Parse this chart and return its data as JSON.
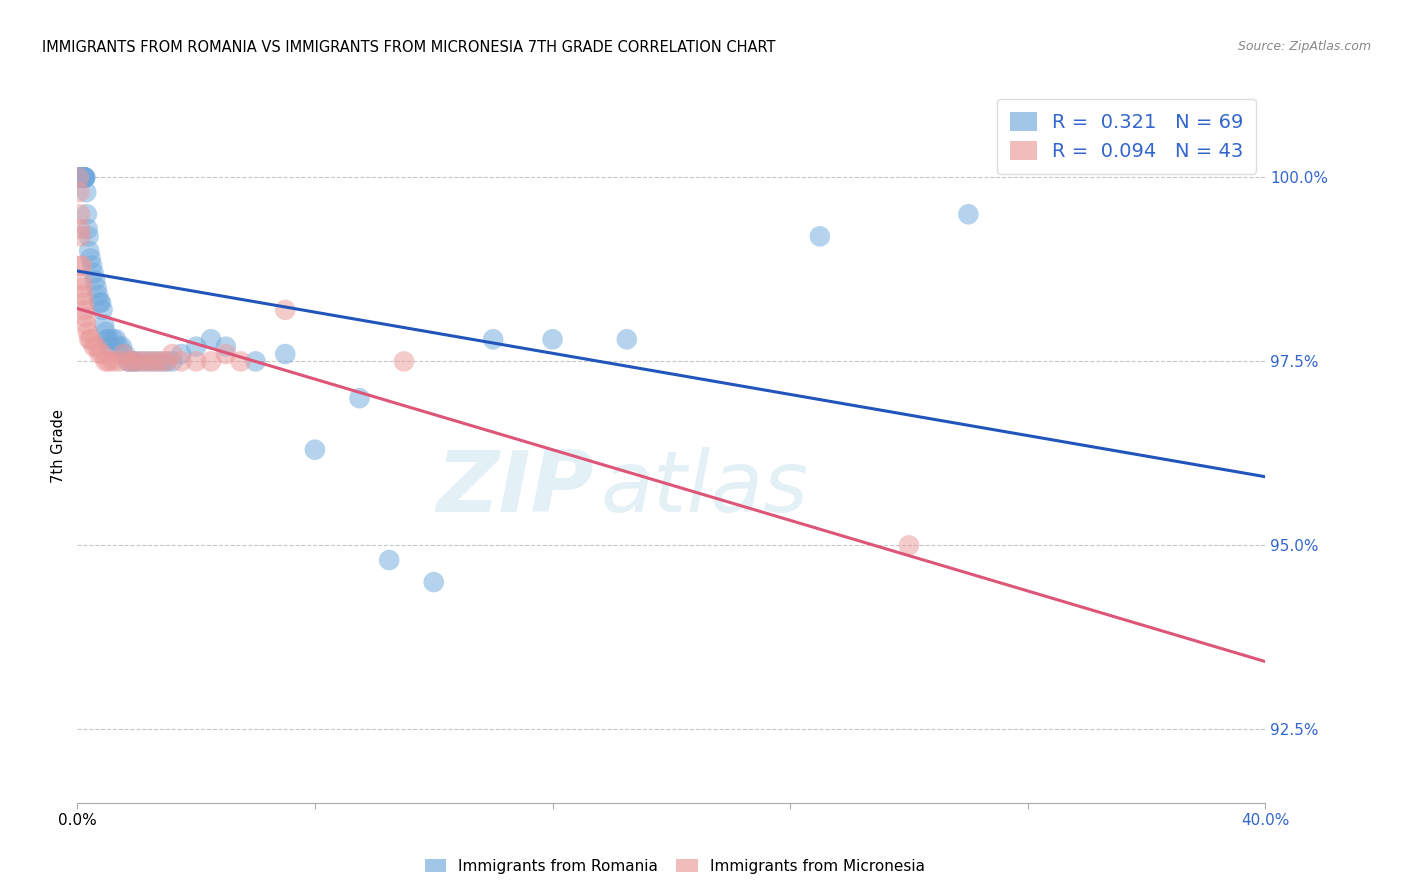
{
  "title": "IMMIGRANTS FROM ROMANIA VS IMMIGRANTS FROM MICRONESIA 7TH GRADE CORRELATION CHART",
  "source": "Source: ZipAtlas.com",
  "ylabel": "7th Grade",
  "xlim": [
    0.0,
    40.0
  ],
  "ylim": [
    91.5,
    101.2
  ],
  "yticks": [
    92.5,
    95.0,
    97.5,
    100.0
  ],
  "ytick_labels": [
    "92.5%",
    "95.0%",
    "97.5%",
    "100.0%"
  ],
  "xtick_positions": [
    0.0,
    8.0,
    16.0,
    24.0,
    32.0,
    40.0
  ],
  "romania_color": "#6fa8dc",
  "micronesia_color": "#ea9999",
  "line_blue": "#2255bb",
  "line_pink": "#dd5577",
  "legend_R_romania": "0.321",
  "legend_N_romania": "69",
  "legend_R_micronesia": "0.094",
  "legend_N_micronesia": "43",
  "romania_x": [
    0.05,
    0.08,
    0.1,
    0.11,
    0.12,
    0.13,
    0.14,
    0.15,
    0.16,
    0.17,
    0.18,
    0.19,
    0.2,
    0.21,
    0.22,
    0.23,
    0.24,
    0.25,
    0.26,
    0.27,
    0.3,
    0.32,
    0.35,
    0.38,
    0.4,
    0.45,
    0.5,
    0.55,
    0.6,
    0.65,
    0.7,
    0.75,
    0.8,
    0.85,
    0.9,
    0.95,
    1.0,
    1.05,
    1.1,
    1.2,
    1.3,
    1.4,
    1.5,
    1.6,
    1.7,
    1.8,
    1.9,
    2.0,
    2.2,
    2.4,
    2.6,
    2.8,
    3.0,
    3.2,
    3.5,
    4.0,
    4.5,
    5.0,
    6.0,
    7.0,
    8.0,
    9.5,
    10.5,
    12.0,
    14.0,
    16.0,
    18.5,
    25.0,
    30.0
  ],
  "romania_y": [
    100.0,
    100.0,
    100.0,
    100.0,
    100.0,
    100.0,
    100.0,
    100.0,
    100.0,
    100.0,
    100.0,
    100.0,
    100.0,
    100.0,
    100.0,
    100.0,
    100.0,
    100.0,
    100.0,
    100.0,
    99.8,
    99.5,
    99.3,
    99.2,
    99.0,
    98.9,
    98.8,
    98.7,
    98.6,
    98.5,
    98.4,
    98.3,
    98.3,
    98.2,
    98.0,
    97.9,
    97.8,
    97.8,
    97.7,
    97.8,
    97.8,
    97.7,
    97.7,
    97.6,
    97.5,
    97.5,
    97.5,
    97.5,
    97.5,
    97.5,
    97.5,
    97.5,
    97.5,
    97.5,
    97.6,
    97.7,
    97.8,
    97.7,
    97.5,
    97.6,
    96.3,
    97.0,
    94.8,
    94.5,
    97.8,
    97.8,
    97.8,
    99.2,
    99.5
  ],
  "micronesia_x": [
    0.05,
    0.07,
    0.09,
    0.1,
    0.11,
    0.12,
    0.14,
    0.16,
    0.18,
    0.2,
    0.22,
    0.25,
    0.28,
    0.3,
    0.35,
    0.4,
    0.45,
    0.55,
    0.65,
    0.75,
    0.85,
    0.95,
    1.05,
    1.2,
    1.4,
    1.55,
    1.7,
    1.85,
    2.0,
    2.2,
    2.4,
    2.6,
    2.8,
    3.0,
    3.2,
    3.5,
    4.0,
    4.5,
    5.0,
    5.5,
    7.0,
    11.0,
    28.0
  ],
  "micronesia_y": [
    100.0,
    99.8,
    99.5,
    99.3,
    99.2,
    98.8,
    98.8,
    98.6,
    98.5,
    98.4,
    98.3,
    98.2,
    98.1,
    98.0,
    97.9,
    97.8,
    97.8,
    97.7,
    97.7,
    97.6,
    97.6,
    97.5,
    97.5,
    97.5,
    97.5,
    97.6,
    97.5,
    97.5,
    97.5,
    97.5,
    97.5,
    97.5,
    97.5,
    97.5,
    97.6,
    97.5,
    97.5,
    97.5,
    97.6,
    97.5,
    98.2,
    97.5,
    95.0
  ],
  "watermark_zip": "ZIP",
  "watermark_atlas": "atlas",
  "bg_color": "#ffffff",
  "grid_color": "#c8c8c8",
  "label_color": "#3366cc"
}
